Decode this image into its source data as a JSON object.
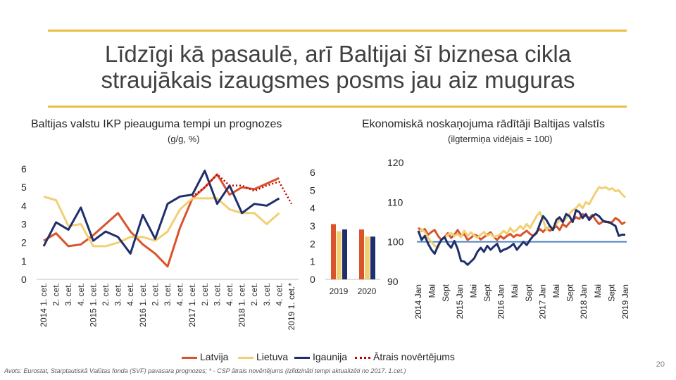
{
  "title": {
    "line1": "Līdzīgi kā pasaulē, arī Baltijai šī biznesa cikla",
    "line2": "straujākais izaugsmes posms jau aiz muguras"
  },
  "left_panel": {
    "heading": "Baltijas valstu IKP pieauguma tempi un prognozes",
    "note": "(g/g, %)"
  },
  "right_panel": {
    "heading": "Ekonomiskā noskaņojuma rādītāji Baltijas valstīs",
    "note": "(ilgtermiņa vidējais = 100)"
  },
  "legend": [
    {
      "label": "Latvija",
      "color": "#D9532B",
      "style": "solid"
    },
    {
      "label": "Lietuva",
      "color": "#F2CF73",
      "style": "solid"
    },
    {
      "label": "Igaunija",
      "color": "#1F2F6B",
      "style": "solid"
    },
    {
      "label": "Ātrais novērtējums",
      "color": "#C00000",
      "style": "dotted"
    }
  ],
  "footer": {
    "source": "Avots: Eurostat, Starptautiskā Valūtas fonda (SVF) pavasara prognozes; * - CSP ātrais novērtējums (izlīdzināti tempi aktualizēti no 2017. 1.cet.)",
    "page": "20"
  },
  "chart_data": [
    {
      "type": "line",
      "title": "Baltijas valstu IKP pieauguma tempi un prognozes",
      "ylabel": "(g/g, %)",
      "ylim": [
        0,
        6
      ],
      "yticks": [
        0,
        1,
        2,
        3,
        4,
        5,
        6
      ],
      "categories": [
        "2014 1. cet.",
        "2. cet.",
        "3. cet.",
        "4. cet.",
        "2015 1. cet.",
        "2. cet.",
        "3. cet.",
        "4. cet.",
        "2016 1. cet.",
        "2. cet.",
        "3. cet.",
        "4. cet.",
        "2017 1. cet.",
        "2. cet.",
        "3. cet.",
        "4. cet.",
        "2018 1. cet.",
        "2. cet.",
        "3. cet.",
        "4. cet.",
        "2019 1. cet.*"
      ],
      "series": [
        {
          "name": "Latvija",
          "color": "#D9532B",
          "values": [
            2.1,
            2.5,
            1.8,
            1.9,
            2.4,
            3.0,
            3.6,
            2.6,
            1.9,
            1.4,
            0.7,
            2.8,
            4.4,
            5.0,
            5.7,
            4.6,
            5.0,
            4.9,
            5.2,
            5.5,
            null
          ]
        },
        {
          "name": "Lietuva",
          "color": "#F2CF73",
          "values": [
            4.5,
            4.3,
            2.9,
            3.0,
            1.8,
            1.8,
            2.0,
            2.3,
            2.3,
            2.1,
            2.6,
            3.8,
            4.4,
            4.4,
            4.4,
            3.8,
            3.6,
            3.6,
            3.0,
            3.6,
            null
          ]
        },
        {
          "name": "Igaunija",
          "color": "#1F2F6B",
          "values": [
            1.8,
            3.1,
            2.7,
            3.9,
            2.1,
            2.6,
            2.3,
            1.4,
            3.5,
            2.2,
            4.1,
            4.5,
            4.6,
            5.9,
            4.1,
            5.1,
            3.6,
            4.1,
            4.0,
            4.4,
            null
          ]
        },
        {
          "name": "Ātrais novērtējums",
          "color": "#C00000",
          "style": "dotted",
          "values": [
            null,
            null,
            null,
            null,
            null,
            null,
            null,
            null,
            null,
            null,
            null,
            null,
            4.5,
            5.0,
            5.7,
            5.1,
            5.1,
            4.8,
            5.1,
            5.3,
            4.1
          ]
        }
      ]
    },
    {
      "type": "bar",
      "categories": [
        "2019",
        "2020"
      ],
      "ylim": [
        0,
        6
      ],
      "yticks": [
        0,
        1,
        2,
        3,
        4,
        5,
        6
      ],
      "series": [
        {
          "name": "Latvija",
          "color": "#D9532B",
          "values": [
            3.1,
            2.8
          ]
        },
        {
          "name": "Lietuva",
          "color": "#F2CF73",
          "values": [
            2.7,
            2.4
          ]
        },
        {
          "name": "Igaunija",
          "color": "#1F2F6B",
          "values": [
            2.8,
            2.4
          ]
        }
      ]
    },
    {
      "type": "line",
      "title": "Ekonomiskā noskaņojuma rādītāji Baltijas valstīs",
      "ylabel": "(ilgtermiņa vidējais = 100)",
      "ylim": [
        90,
        120
      ],
      "yticks": [
        90,
        100,
        110,
        120
      ],
      "reference_line": {
        "value": 100,
        "color": "#4E81BD"
      },
      "x_tick_labels": [
        "2014 Jan",
        "Mai",
        "Sept",
        "2015 Jan",
        "Mai",
        "Sept",
        "2016 Jan",
        "Mai",
        "Sept",
        "2017 Jan",
        "Mai",
        "Sept",
        "2018 Jan",
        "Mai",
        "Sept",
        "2019 Jan"
      ],
      "months": [
        "2014-01",
        "2014-02",
        "2014-03",
        "2014-04",
        "2014-05",
        "2014-06",
        "2014-07",
        "2014-08",
        "2014-09",
        "2014-10",
        "2014-11",
        "2014-12",
        "2015-01",
        "2015-02",
        "2015-03",
        "2015-04",
        "2015-05",
        "2015-06",
        "2015-07",
        "2015-08",
        "2015-09",
        "2015-10",
        "2015-11",
        "2015-12",
        "2016-01",
        "2016-02",
        "2016-03",
        "2016-04",
        "2016-05",
        "2016-06",
        "2016-07",
        "2016-08",
        "2016-09",
        "2016-10",
        "2016-11",
        "2016-12",
        "2017-01",
        "2017-02",
        "2017-03",
        "2017-04",
        "2017-05",
        "2017-06",
        "2017-07",
        "2017-08",
        "2017-09",
        "2017-10",
        "2017-11",
        "2017-12",
        "2018-01",
        "2018-02",
        "2018-03",
        "2018-04",
        "2018-05",
        "2018-06",
        "2018-07",
        "2018-08",
        "2018-09",
        "2018-10",
        "2018-11",
        "2018-12",
        "2019-01",
        "2019-02",
        "2019-03",
        "2019-04"
      ],
      "series": [
        {
          "name": "Latvija",
          "color": "#D9532B",
          "values": [
            103.5,
            102.8,
            103.2,
            101.8,
            102.5,
            103.0,
            101.5,
            100.5,
            101.2,
            102.2,
            101.0,
            101.8,
            103.0,
            101.5,
            102.0,
            100.5,
            101.0,
            101.8,
            101.5,
            100.6,
            101.2,
            101.8,
            102.4,
            101.2,
            100.5,
            101.5,
            100.8,
            101.5,
            102.0,
            101.2,
            101.8,
            101.5,
            102.2,
            102.8,
            102.0,
            101.5,
            102.5,
            103.2,
            102.5,
            103.5,
            102.8,
            103.2,
            104.0,
            103.0,
            104.5,
            103.8,
            104.8,
            105.5,
            106.2,
            105.8,
            107.0,
            106.5,
            106.0,
            106.8,
            105.5,
            104.5,
            105.0,
            105.2,
            104.8,
            105.0,
            106.0,
            105.5,
            104.5,
            105.0
          ]
        },
        {
          "name": "Lietuva",
          "color": "#F2CF73",
          "values": [
            102.0,
            103.2,
            102.5,
            101.0,
            100.0,
            99.0,
            98.5,
            100.5,
            101.0,
            101.8,
            102.2,
            101.5,
            102.0,
            101.2,
            102.8,
            101.5,
            102.4,
            101.6,
            101.0,
            101.8,
            102.5,
            101.5,
            102.0,
            101.2,
            101.5,
            102.0,
            102.8,
            102.0,
            103.5,
            102.5,
            103.0,
            104.0,
            103.2,
            104.5,
            103.5,
            105.0,
            106.5,
            107.5,
            105.5,
            103.0,
            104.0,
            103.5,
            104.5,
            105.5,
            105.0,
            106.0,
            107.0,
            108.0,
            108.5,
            109.5,
            108.5,
            110.0,
            109.5,
            111.0,
            112.5,
            113.8,
            113.5,
            113.8,
            113.2,
            113.5,
            112.8,
            113.0,
            112.0,
            111.2
          ]
        },
        {
          "name": "Igaunija",
          "color": "#1F2F6B",
          "values": [
            102.8,
            100.5,
            101.5,
            99.5,
            98.0,
            97.0,
            99.0,
            100.5,
            101.2,
            99.5,
            98.5,
            100.2,
            98.2,
            95.2,
            95.0,
            94.2,
            95.0,
            95.8,
            97.5,
            98.5,
            97.5,
            99.0,
            98.0,
            98.8,
            99.5,
            97.5,
            98.0,
            98.3,
            98.8,
            99.5,
            98.0,
            99.0,
            100.0,
            99.2,
            100.5,
            101.5,
            102.2,
            104.5,
            106.5,
            105.5,
            104.0,
            103.0,
            105.5,
            106.2,
            105.0,
            107.0,
            106.5,
            105.0,
            108.0,
            107.5,
            106.0,
            107.0,
            105.5,
            106.5,
            107.0,
            106.5,
            105.5,
            105.0,
            105.0,
            104.5,
            104.0,
            101.5,
            101.8,
            101.8
          ]
        }
      ]
    }
  ]
}
